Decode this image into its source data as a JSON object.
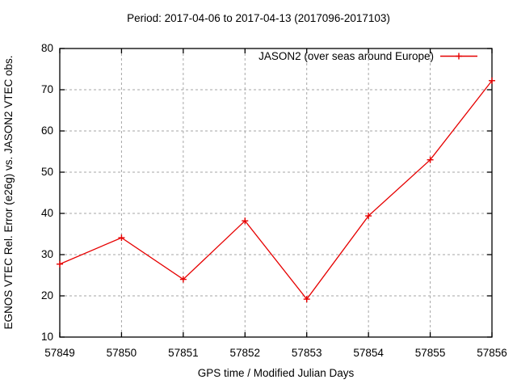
{
  "page": {
    "background": "#ffffff"
  },
  "chart_data": {
    "type": "line",
    "title": "Period: 2017-04-06 to 2017-04-13 (2017096-2017103)",
    "xlabel": "GPS time / Modified Julian Days",
    "ylabel": "EGNOS VTEC Rel. Error (e26g) vs. JASON2 VTEC obs.",
    "xlim": [
      57849,
      57856
    ],
    "ylim": [
      10,
      80
    ],
    "xticks": [
      57849,
      57850,
      57851,
      57852,
      57853,
      57854,
      57855,
      57856
    ],
    "yticks": [
      10,
      20,
      30,
      40,
      50,
      60,
      70,
      80
    ],
    "grid": true,
    "legend": {
      "position": "top-right-inside"
    },
    "series": [
      {
        "name": "JASON2 (over seas around Europe)",
        "color": "#e60000",
        "marker": "plus",
        "x": [
          57849,
          57850,
          57851,
          57852,
          57853,
          57854,
          57855,
          57856
        ],
        "y": [
          27.7,
          34.1,
          24.0,
          38.2,
          19.2,
          39.4,
          53.0,
          72.2
        ]
      }
    ],
    "colors": {
      "line": "#e60000",
      "grid": "#a6a6a6",
      "axis": "#000000",
      "text": "#000000",
      "background": "#ffffff"
    }
  }
}
